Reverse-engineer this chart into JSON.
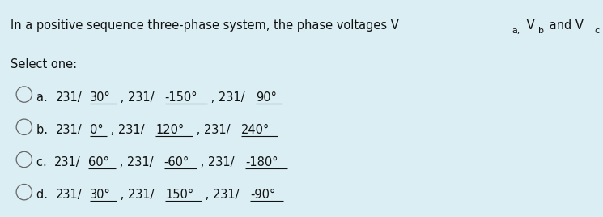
{
  "background_color": "#daeef3",
  "fig_width": 7.45,
  "fig_height": 2.68,
  "text_color": "#111111",
  "font_size": 10.5,
  "font_size_sub": 8.0,
  "select_one": "Select one:",
  "options": [
    {
      "label": "a",
      "parts": [
        {
          "text": "231/",
          "underline": false
        },
        {
          "text": "30°",
          "underline": true
        },
        {
          "text": " , 231/",
          "underline": false
        },
        {
          "text": "-150°",
          "underline": true
        },
        {
          "text": " , 231/",
          "underline": false
        },
        {
          "text": "90°",
          "underline": true
        }
      ]
    },
    {
      "label": "b",
      "parts": [
        {
          "text": "231/",
          "underline": false
        },
        {
          "text": "0°",
          "underline": true
        },
        {
          "text": " , 231/",
          "underline": false
        },
        {
          "text": "120°",
          "underline": true
        },
        {
          "text": " , 231/",
          "underline": false
        },
        {
          "text": "240°",
          "underline": true
        }
      ]
    },
    {
      "label": "c",
      "parts": [
        {
          "text": "231/",
          "underline": false
        },
        {
          "text": "60°",
          "underline": true
        },
        {
          "text": " , 231/",
          "underline": false
        },
        {
          "text": "-60°",
          "underline": true
        },
        {
          "text": " , 231/",
          "underline": false
        },
        {
          "text": "-180°",
          "underline": true
        }
      ]
    },
    {
      "label": "d",
      "parts": [
        {
          "text": "231/",
          "underline": false
        },
        {
          "text": "30°",
          "underline": true
        },
        {
          "text": " , 231/",
          "underline": false
        },
        {
          "text": "150°",
          "underline": true
        },
        {
          "text": " , 231/",
          "underline": false
        },
        {
          "text": "-90°",
          "underline": true
        }
      ]
    }
  ]
}
